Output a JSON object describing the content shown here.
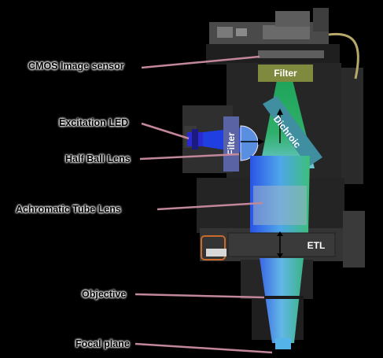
{
  "labels": {
    "cmos": "CMOS Image sensor",
    "excitation_led": "Excitation LED",
    "half_ball_lens": "Half Ball Lens",
    "tube_lens": "Achromatic Tube Lens",
    "objective": "Objective",
    "focal_plane": "Focal plane"
  },
  "components": {
    "filter_top": "Filter",
    "filter_side": "Filter",
    "dichroic": "Dichroic",
    "etl": "ETL"
  },
  "colors": {
    "callout_line": "#c2879a",
    "excitation_blue": "#1f3fe0",
    "emission_green": "#1fa35a",
    "dichroic_teal": "#3f8fa0",
    "filter_olive": "#7f8a3e",
    "filter_purple": "#5a63a3",
    "housing": "#262626"
  }
}
